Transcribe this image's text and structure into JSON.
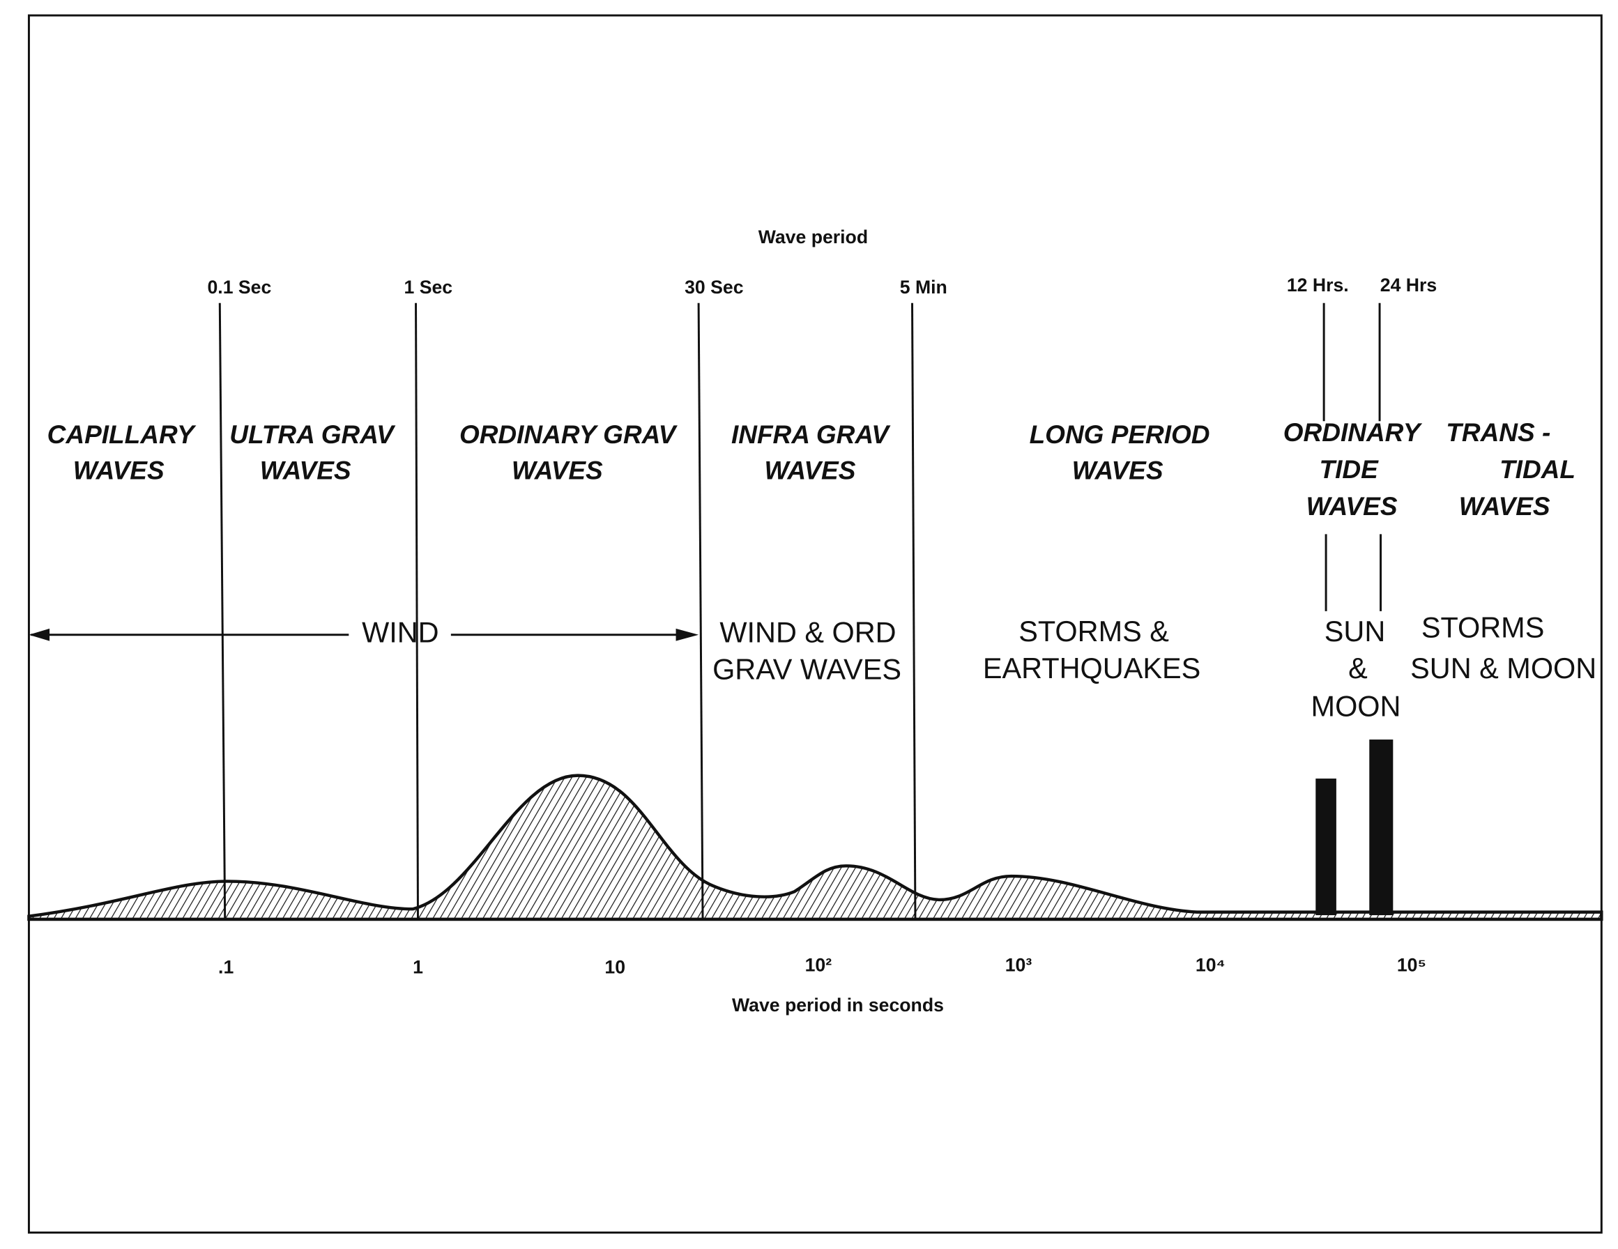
{
  "title": "Wave period",
  "period_markers": [
    "0.1 Sec",
    "1 Sec",
    "30 Sec",
    "5 Min",
    "12 Hrs.",
    "24 Hrs"
  ],
  "wave_types": [
    {
      "lines": [
        "CAPILLARY",
        "WAVES"
      ]
    },
    {
      "lines": [
        "ULTRA GRAV",
        "WAVES"
      ]
    },
    {
      "lines": [
        "ORDINARY GRAV",
        "WAVES"
      ]
    },
    {
      "lines": [
        "INFRA GRAV",
        "WAVES"
      ]
    },
    {
      "lines": [
        "LONG PERIOD",
        "WAVES"
      ]
    },
    {
      "lines": [
        "ORDINARY",
        "TIDE",
        "WAVES"
      ]
    },
    {
      "lines": [
        "TRANS -",
        "TIDAL",
        "WAVES"
      ]
    }
  ],
  "forces": [
    {
      "lines": [
        "WIND"
      ]
    },
    {
      "lines": [
        "WIND & ORD",
        "GRAV WAVES"
      ]
    },
    {
      "lines": [
        "STORMS &",
        "EARTHQUAKES"
      ]
    },
    {
      "lines": [
        "SUN",
        "&",
        "MOON"
      ]
    },
    {
      "lines": [
        "STORMS",
        "SUN & MOON"
      ]
    }
  ],
  "x_axis": {
    "ticks": [
      ".1",
      "1",
      "10",
      "10²",
      "10³",
      "10⁴",
      "10⁵"
    ],
    "label": "Wave period in seconds"
  }
}
